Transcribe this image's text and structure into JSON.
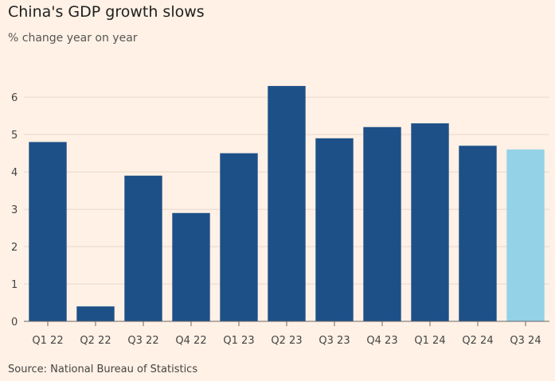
{
  "page": {
    "background": "#fff1e5",
    "title": "China's GDP growth slows",
    "subtitle": "% change year on year",
    "source": "Source: National Bureau of Statistics"
  },
  "chart_data": {
    "type": "bar",
    "title": "China's GDP growth slows",
    "subtitle": "% change year on year",
    "xlabel": "",
    "ylabel": "",
    "categories": [
      "Q1 22",
      "Q2 22",
      "Q3 22",
      "Q4 22",
      "Q1 23",
      "Q2 23",
      "Q3 23",
      "Q4 23",
      "Q1 24",
      "Q2 24",
      "Q3 24"
    ],
    "values": [
      4.8,
      0.4,
      3.9,
      2.9,
      4.5,
      6.3,
      4.9,
      5.2,
      5.3,
      4.7,
      4.6
    ],
    "ylim": [
      0,
      6.6
    ],
    "yticks": [
      0,
      1,
      2,
      3,
      4,
      5,
      6
    ],
    "grid": true,
    "legend": "none",
    "colors": {
      "bar": "#1e5088",
      "highlight": "#94d2e8",
      "grid": "#e6d8cc",
      "axis": "#666666"
    },
    "highlight_index": 10
  }
}
